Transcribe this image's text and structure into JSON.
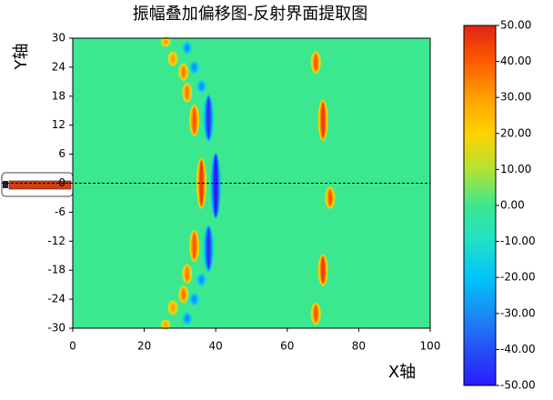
{
  "chart_data": {
    "type": "heatmap",
    "title": "振幅叠加偏移图-反射界面提取图",
    "x_label": "X轴",
    "y_label": "Y轴",
    "xlim": [
      0,
      100
    ],
    "xticks": [
      0,
      20,
      40,
      60,
      80,
      100
    ],
    "ylim": [
      -30,
      30
    ],
    "yticks": [
      -30,
      -24,
      -18,
      -12,
      -6,
      0,
      6,
      12,
      18,
      24,
      30
    ],
    "background_value": 0,
    "clim": [
      -50,
      50
    ],
    "cticks": [
      {
        "value": 50,
        "label": "50.00"
      },
      {
        "value": 40,
        "label": "40.00"
      },
      {
        "value": 30,
        "label": "30.00"
      },
      {
        "value": 20,
        "label": "20.00"
      },
      {
        "value": 10,
        "label": "10.00"
      },
      {
        "value": 0,
        "label": "0.00"
      },
      {
        "value": -10,
        "label": "-10.00"
      },
      {
        "value": -20,
        "label": "-20.00"
      },
      {
        "value": -30,
        "label": "-30.00"
      },
      {
        "value": -40,
        "label": "-40.00"
      },
      {
        "value": -50,
        "label": "-50.00"
      }
    ],
    "colorscale": [
      {
        "value": -50,
        "color": "#2a1cff"
      },
      {
        "value": -40,
        "color": "#2450f5"
      },
      {
        "value": -30,
        "color": "#1a8cf5"
      },
      {
        "value": -20,
        "color": "#00c4f8"
      },
      {
        "value": -10,
        "color": "#20e0c8"
      },
      {
        "value": 0,
        "color": "#3ce88f"
      },
      {
        "value": 10,
        "color": "#b4e232"
      },
      {
        "value": 20,
        "color": "#ffd200"
      },
      {
        "value": 30,
        "color": "#ffa000"
      },
      {
        "value": 40,
        "color": "#ff5a00"
      },
      {
        "value": 50,
        "color": "#e02412"
      }
    ],
    "cells": [
      {
        "x": 26,
        "y": [
          28.5,
          30
        ],
        "value": 30
      },
      {
        "x": 32,
        "y": [
          27,
          29
        ],
        "value": -30
      },
      {
        "x": 28,
        "y": [
          24.5,
          27
        ],
        "value": 30
      },
      {
        "x": 34,
        "y": [
          23,
          25
        ],
        "value": -30
      },
      {
        "x": 31,
        "y": [
          21.5,
          24.5
        ],
        "value": 35
      },
      {
        "x": 36,
        "y": [
          19,
          21
        ],
        "value": -30
      },
      {
        "x": 32,
        "y": [
          17,
          20.5
        ],
        "value": 35
      },
      {
        "x": 34,
        "y": [
          10,
          16
        ],
        "value": 40
      },
      {
        "x": 38,
        "y": [
          9,
          18
        ],
        "value": -45
      },
      {
        "x": 36,
        "y": [
          -5,
          5
        ],
        "value": 45
      },
      {
        "x": 40,
        "y": [
          -7,
          6
        ],
        "value": -50
      },
      {
        "x": 34,
        "y": [
          -16,
          -10
        ],
        "value": 40
      },
      {
        "x": 38,
        "y": [
          -18,
          -9
        ],
        "value": -45
      },
      {
        "x": 32,
        "y": [
          -20.5,
          -17
        ],
        "value": 35
      },
      {
        "x": 36,
        "y": [
          -21,
          -19
        ],
        "value": -30
      },
      {
        "x": 31,
        "y": [
          -24.5,
          -21.5
        ],
        "value": 35
      },
      {
        "x": 34,
        "y": [
          -25,
          -23
        ],
        "value": -30
      },
      {
        "x": 28,
        "y": [
          -27,
          -24.5
        ],
        "value": 30
      },
      {
        "x": 32,
        "y": [
          -29,
          -27
        ],
        "value": -30
      },
      {
        "x": 26,
        "y": [
          -30,
          -28.5
        ],
        "value": 30
      },
      {
        "x": 68,
        "y": [
          23,
          27
        ],
        "value": 40
      },
      {
        "x": 70,
        "y": [
          9,
          17
        ],
        "value": 45
      },
      {
        "x": 72,
        "y": [
          -5,
          -1
        ],
        "value": 40
      },
      {
        "x": 70,
        "y": [
          -21,
          -15
        ],
        "value": 45
      },
      {
        "x": 68,
        "y": [
          -29,
          -25
        ],
        "value": 40
      }
    ]
  }
}
